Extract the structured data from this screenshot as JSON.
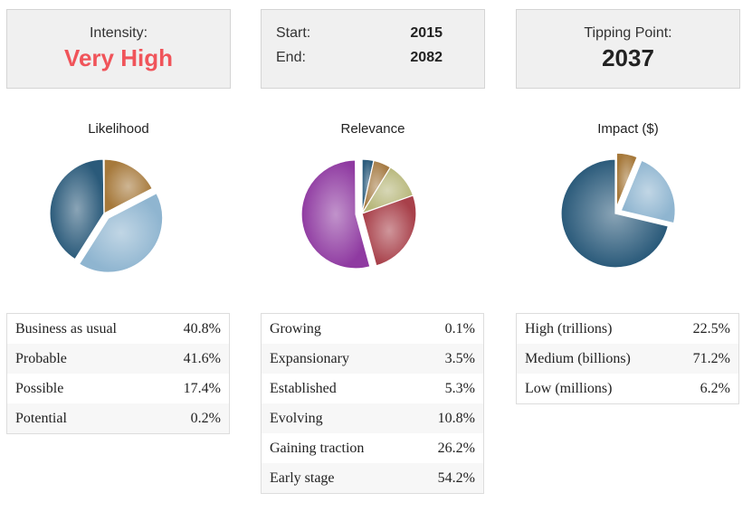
{
  "intensity": {
    "label": "Intensity:",
    "value": "Very High",
    "value_color": "#f0545a"
  },
  "range": {
    "start_label": "Start:",
    "start_value": "2015",
    "end_label": "End:",
    "end_value": "2082"
  },
  "tipping": {
    "label": "Tipping Point:",
    "value": "2037"
  },
  "likelihood": {
    "title": "Likelihood",
    "rows": [
      {
        "label": "Business as usual",
        "value": "40.8%"
      },
      {
        "label": "Probable",
        "value": "41.6%"
      },
      {
        "label": "Possible",
        "value": "17.4%"
      },
      {
        "label": "Potential",
        "value": "0.2%"
      }
    ]
  },
  "relevance": {
    "title": "Relevance",
    "rows": [
      {
        "label": "Growing",
        "value": "0.1%"
      },
      {
        "label": "Expansionary",
        "value": "3.5%"
      },
      {
        "label": "Established",
        "value": "5.3%"
      },
      {
        "label": "Evolving",
        "value": "10.8%"
      },
      {
        "label": "Gaining traction",
        "value": "26.2%"
      },
      {
        "label": "Early stage",
        "value": "54.2%"
      }
    ]
  },
  "impact": {
    "title": "Impact ($)",
    "rows": [
      {
        "label": "High (trillions)",
        "value": "22.5%"
      },
      {
        "label": "Medium (billions)",
        "value": "71.2%"
      },
      {
        "label": "Low (millions)",
        "value": "6.2%"
      }
    ]
  },
  "chart_data": [
    {
      "type": "pie",
      "title": "Likelihood",
      "categories": [
        "Possible",
        "Probable",
        "Business as usual",
        "Potential"
      ],
      "values": [
        17.4,
        41.6,
        40.8,
        0.2
      ],
      "colors": [
        "#a6793b",
        "#8fb5d0",
        "#2a5a7a",
        "#c9c9c9"
      ],
      "exploded": [
        "Probable"
      ]
    },
    {
      "type": "pie",
      "title": "Relevance",
      "categories": [
        "Expansionary",
        "Established",
        "Evolving",
        "Gaining traction",
        "Early stage",
        "Growing"
      ],
      "values": [
        3.5,
        5.3,
        10.8,
        26.2,
        54.2,
        0.1
      ],
      "colors": [
        "#2d5d7d",
        "#a67c45",
        "#b7b77a",
        "#a8404a",
        "#8f3aa1",
        "#c9c9c9"
      ],
      "exploded": [
        "Early stage"
      ]
    },
    {
      "type": "pie",
      "title": "Impact ($)",
      "categories": [
        "Low (millions)",
        "High (trillions)",
        "Medium (billions)"
      ],
      "values": [
        6.2,
        22.5,
        71.2
      ],
      "colors": [
        "#a6793b",
        "#8fb5d0",
        "#2a5a7a"
      ],
      "exploded": [
        "High (trillions)",
        "Low (millions)"
      ]
    }
  ]
}
